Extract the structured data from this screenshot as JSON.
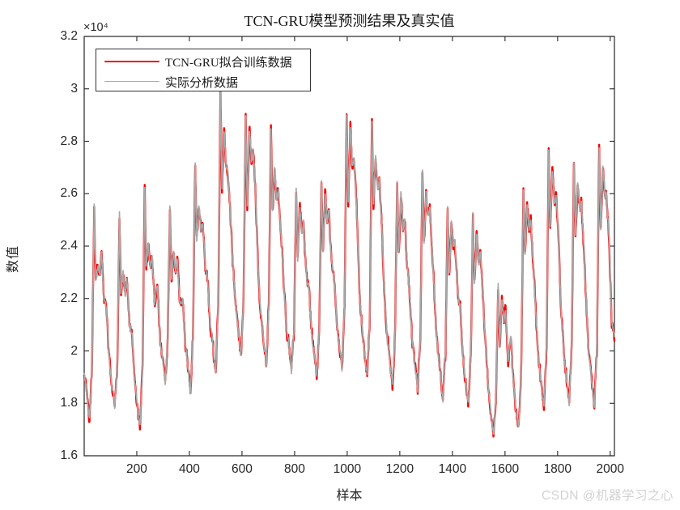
{
  "watermark": {
    "text": "CSDN @机器学习之心"
  },
  "chart_data": {
    "type": "line",
    "title": "TCN-GRU模型预测结果及真实值",
    "xlabel": "样本",
    "ylabel": "数值",
    "y_axis_multiplier": "×10⁴",
    "grid": "off",
    "legend_position": "top-left-inside",
    "xlim": [
      0,
      2016
    ],
    "ylim": [
      16000,
      32000
    ],
    "x_ticks": [
      200,
      400,
      600,
      800,
      1000,
      1200,
      1400,
      1600,
      1800,
      2000
    ],
    "y_ticks": [
      "1.6",
      "1.8",
      "2",
      "2.2",
      "2.4",
      "2.6",
      "2.8",
      "3",
      "3.2"
    ],
    "y_tick_values_e4": [
      1.6,
      1.8,
      2.0,
      2.2,
      2.4,
      2.6,
      2.8,
      3.0,
      3.2
    ],
    "legend": [
      {
        "label": "TCN-GRU拟合训练数据",
        "color": "#f40000",
        "line_width": 2.4
      },
      {
        "label": "实际分析数据",
        "color": "#a8a8a8",
        "line_width": 1.7
      }
    ],
    "axis_color": "#262626",
    "samples_per_day": 96,
    "series_model": {
      "description": "21 daily cycles (96 samples/day, values in units of 1e4): v=night valley, s=morning spike peak, dip=post-spike dip, h1/h2=midday-evening humps",
      "days": [
        {
          "v": 1.74,
          "s": 2.57,
          "dip": 2.27,
          "h1": 2.33,
          "h2": 2.37
        },
        {
          "v": 1.78,
          "s": 2.52,
          "dip": 2.22,
          "h1": 2.3,
          "h2": 2.28
        },
        {
          "v": 1.71,
          "s": 2.61,
          "dip": 2.32,
          "h1": 2.4,
          "h2": 2.36
        },
        {
          "v": 1.88,
          "s": 2.55,
          "dip": 2.28,
          "h1": 2.38,
          "h2": 2.35
        },
        {
          "v": 1.85,
          "s": 2.72,
          "dip": 2.42,
          "h1": 2.56,
          "h2": 2.5
        },
        {
          "v": 1.92,
          "s": 2.98,
          "dip": 2.62,
          "h1": 2.84,
          "h2": 2.7
        },
        {
          "v": 1.98,
          "s": 2.9,
          "dip": 2.55,
          "h1": 2.84,
          "h2": 2.76
        },
        {
          "v": 1.95,
          "s": 2.85,
          "dip": 2.52,
          "h1": 2.7,
          "h2": 2.62
        },
        {
          "v": 1.92,
          "s": 2.62,
          "dip": 2.35,
          "h1": 2.55,
          "h2": 2.48
        },
        {
          "v": 1.9,
          "s": 2.65,
          "dip": 2.38,
          "h1": 2.6,
          "h2": 2.52
        },
        {
          "v": 1.93,
          "s": 2.92,
          "dip": 2.58,
          "h1": 2.85,
          "h2": 2.72
        },
        {
          "v": 1.9,
          "s": 2.88,
          "dip": 2.55,
          "h1": 2.75,
          "h2": 2.65
        },
        {
          "v": 1.87,
          "s": 2.65,
          "dip": 2.38,
          "h1": 2.58,
          "h2": 2.52
        },
        {
          "v": 1.85,
          "s": 2.7,
          "dip": 2.4,
          "h1": 2.62,
          "h2": 2.55
        },
        {
          "v": 1.82,
          "s": 2.55,
          "dip": 2.3,
          "h1": 2.48,
          "h2": 2.42
        },
        {
          "v": 1.8,
          "s": 2.52,
          "dip": 2.25,
          "h1": 2.45,
          "h2": 2.38
        },
        {
          "v": 1.68,
          "s": 2.25,
          "dip": 2.02,
          "h1": 2.2,
          "h2": 2.15
        },
        {
          "v": 1.7,
          "s": 2.62,
          "dip": 2.35,
          "h1": 2.55,
          "h2": 2.5
        },
        {
          "v": 1.78,
          "s": 2.77,
          "dip": 2.48,
          "h1": 2.68,
          "h2": 2.6
        },
        {
          "v": 1.8,
          "s": 2.72,
          "dip": 2.45,
          "h1": 2.65,
          "h2": 2.58
        },
        {
          "v": 1.8,
          "s": 2.78,
          "dip": 2.45,
          "h1": 2.7,
          "h2": 2.6
        }
      ],
      "end_valley": 1.75,
      "end_value": 2.05,
      "noise_seed": 20240042,
      "coarse_amp": 0.04,
      "fine_amp_actual": 0.015,
      "fine_amp_model": 0.03
    }
  }
}
